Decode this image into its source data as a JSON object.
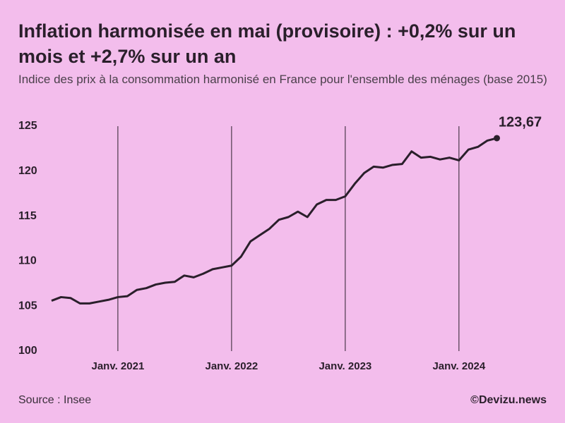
{
  "chart_data": {
    "type": "line",
    "title": "Inflation harmonisée en mai (provisoire) : +0,2% sur un mois et +2,7% sur un an",
    "subtitle": "Indice des prix à la consommation harmonisé en France pour l'ensemble des ménages (base 2015)",
    "source": "Source : Insee",
    "credit": "©Devizu.news",
    "x": [
      "2020-06",
      "2020-07",
      "2020-08",
      "2020-09",
      "2020-10",
      "2020-11",
      "2020-12",
      "2021-01",
      "2021-02",
      "2021-03",
      "2021-04",
      "2021-05",
      "2021-06",
      "2021-07",
      "2021-08",
      "2021-09",
      "2021-10",
      "2021-11",
      "2021-12",
      "2022-01",
      "2022-02",
      "2022-03",
      "2022-04",
      "2022-05",
      "2022-06",
      "2022-07",
      "2022-08",
      "2022-09",
      "2022-10",
      "2022-11",
      "2022-12",
      "2023-01",
      "2023-02",
      "2023-03",
      "2023-04",
      "2023-05",
      "2023-06",
      "2023-07",
      "2023-08",
      "2023-09",
      "2023-10",
      "2023-11",
      "2023-12",
      "2024-01",
      "2024-02",
      "2024-03",
      "2024-04",
      "2024-05"
    ],
    "series": [
      {
        "color": "#2a1f2b",
        "values": [
          105.6,
          106.0,
          105.9,
          105.3,
          105.3,
          105.5,
          105.7,
          106.0,
          106.1,
          106.8,
          107.0,
          107.4,
          107.6,
          107.7,
          108.4,
          108.2,
          108.6,
          109.1,
          109.3,
          109.5,
          110.5,
          112.2,
          112.9,
          113.6,
          114.6,
          114.9,
          115.5,
          114.9,
          116.3,
          116.8,
          116.8,
          117.2,
          118.6,
          119.8,
          120.5,
          120.4,
          120.7,
          120.8,
          122.2,
          121.5,
          121.6,
          121.3,
          121.5,
          121.2,
          122.4,
          122.7,
          123.4,
          123.67
        ],
        "value_labels": [
          null,
          null,
          null,
          null,
          null,
          null,
          null,
          null,
          null,
          null,
          null,
          null,
          null,
          null,
          null,
          null,
          null,
          null,
          null,
          null,
          null,
          null,
          null,
          null,
          null,
          null,
          null,
          null,
          null,
          null,
          null,
          null,
          null,
          null,
          null,
          null,
          null,
          null,
          null,
          null,
          null,
          null,
          null,
          null,
          null,
          null,
          null,
          "123,67"
        ]
      }
    ],
    "xlim": [
      "2020-06",
      "2024-11"
    ],
    "xticks": [
      {
        "value": "2021-01",
        "label": "Janv. 2021"
      },
      {
        "value": "2022-01",
        "label": "Janv. 2022"
      },
      {
        "value": "2023-01",
        "label": "Janv. 2023"
      },
      {
        "value": "2024-01",
        "label": "Janv. 2024"
      }
    ],
    "ylim": [
      100,
      125
    ],
    "yticks": [
      100,
      105,
      110,
      115,
      120,
      125
    ],
    "grid": "x"
  }
}
